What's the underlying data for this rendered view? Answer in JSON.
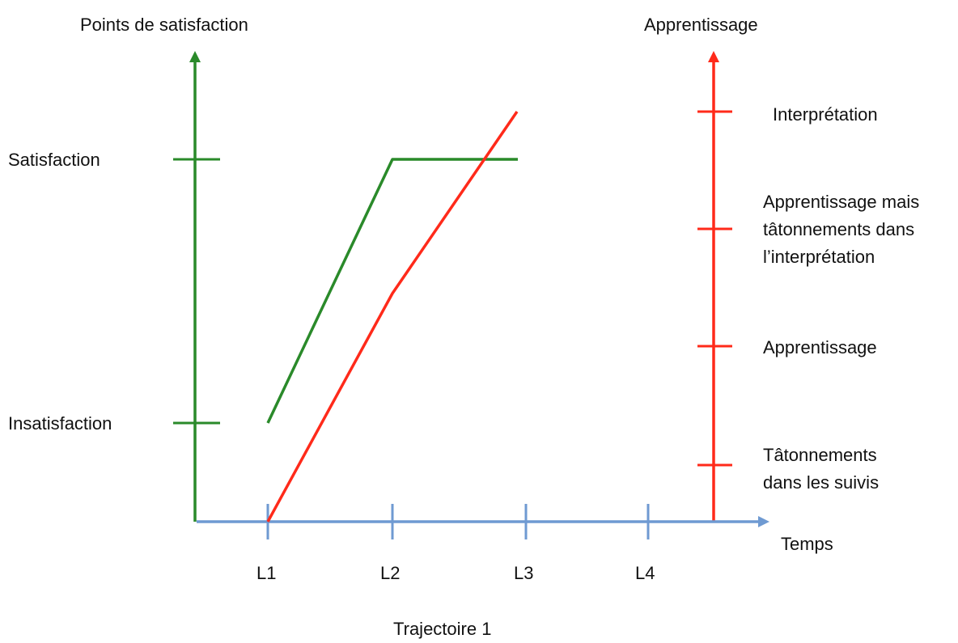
{
  "chart_data": {
    "type": "line",
    "title": "Trajectoire 1",
    "xlabel": "Temps",
    "categories": [
      "L1",
      "L2",
      "L3",
      "L4"
    ],
    "left_axis": {
      "title": "Points de satisfaction",
      "color": "#2a8a2a",
      "levels": [
        "Insatisfaction",
        "Satisfaction"
      ]
    },
    "right_axis": {
      "title": "Apprentissage",
      "color": "#ff2a1a",
      "levels": [
        "Tâtonnements\ndans les suivis",
        "Apprentissage",
        "Apprentissage mais\ntâtonnements dans\nl’interprétation",
        "Interprétation"
      ]
    },
    "x_axis_color": "#6f9ad2",
    "series": [
      {
        "axis": "left",
        "color": "#2a8a2a",
        "points": [
          {
            "x": "L1",
            "level": "Insatisfaction"
          },
          {
            "x": "L2",
            "level": "Satisfaction"
          },
          {
            "x": "L3",
            "level": "Satisfaction"
          }
        ]
      },
      {
        "axis": "right",
        "color": "#ff2a1a",
        "points": [
          {
            "x": "L1",
            "level_index": 0
          },
          {
            "x": "L2",
            "level_index": 1.45
          },
          {
            "x": "L3",
            "level_index": 3
          }
        ]
      }
    ]
  }
}
